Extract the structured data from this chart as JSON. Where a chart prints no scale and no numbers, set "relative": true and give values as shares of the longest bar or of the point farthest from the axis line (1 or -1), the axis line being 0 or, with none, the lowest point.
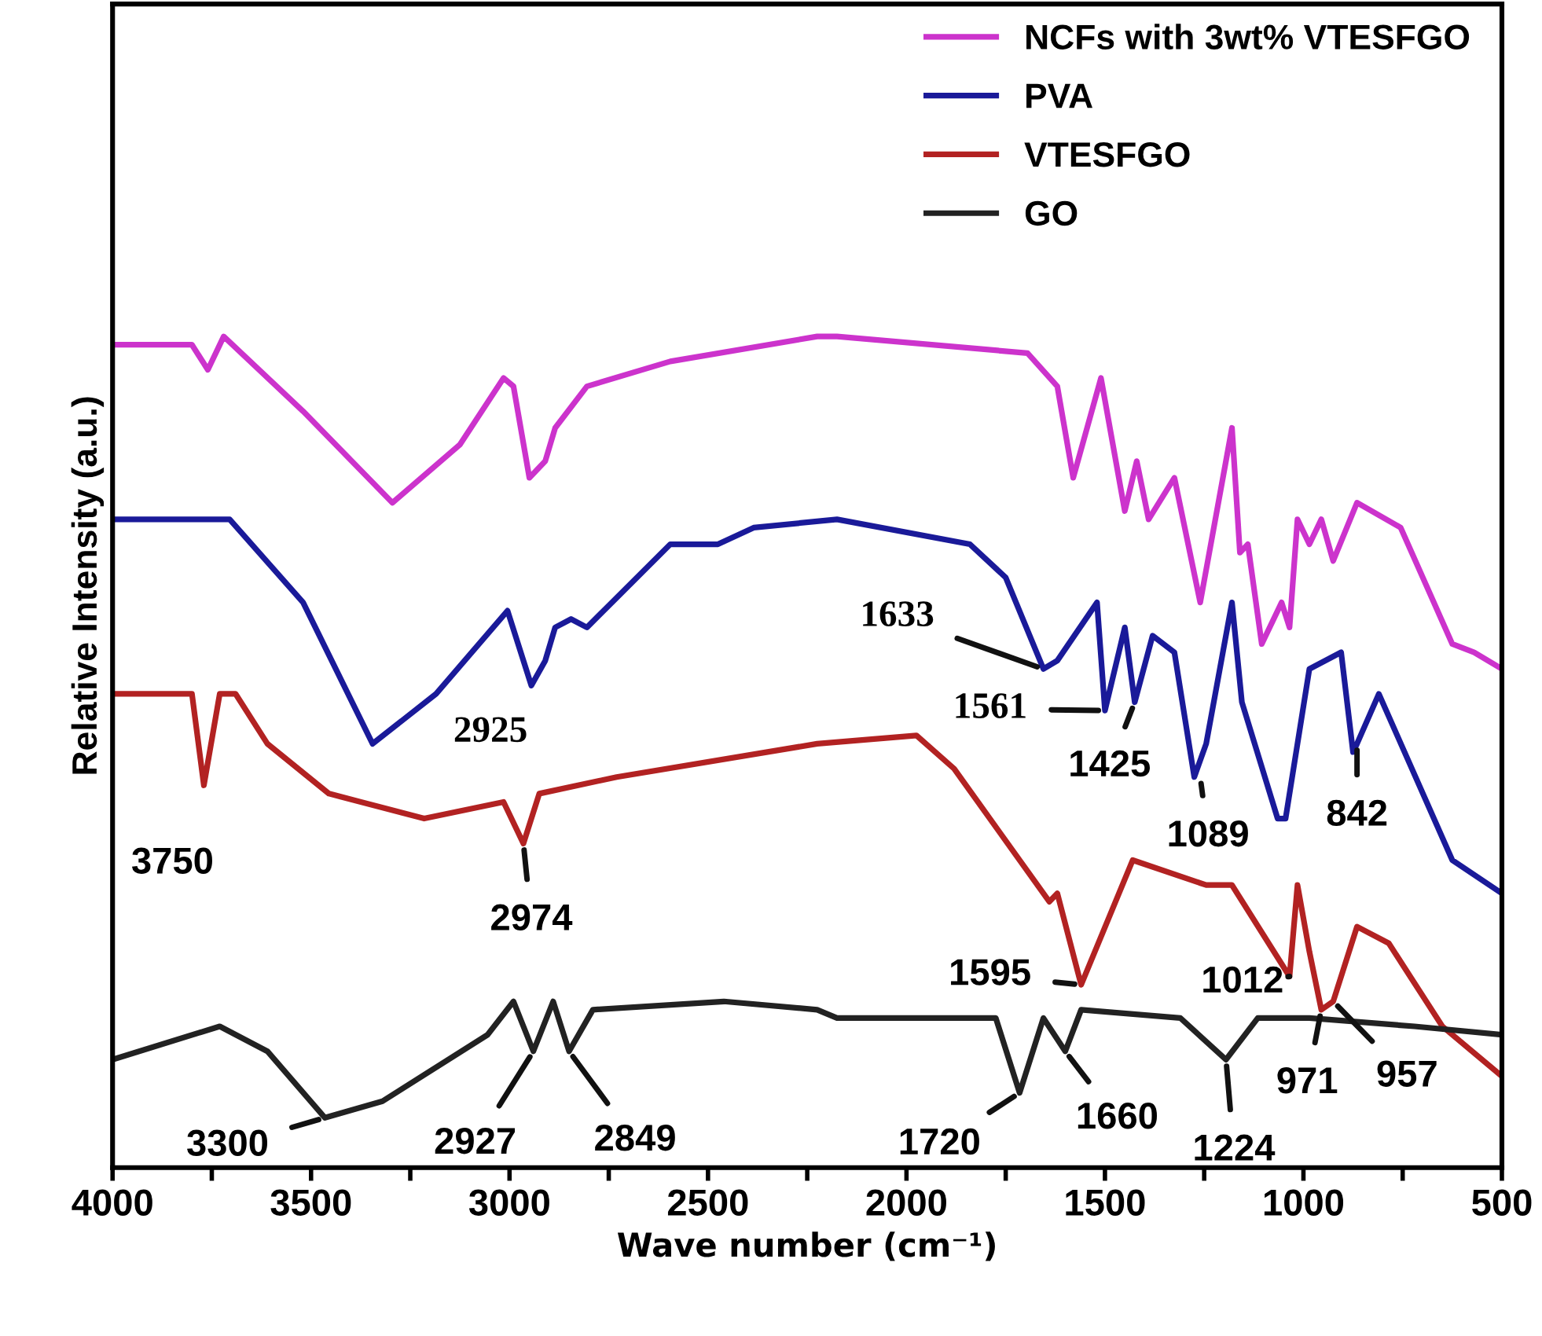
{
  "chart_data": {
    "type": "line",
    "relative": true,
    "xlabel": "Wave number (cm⁻¹)",
    "ylabel": "Relative Intensity (a.u.)",
    "xlim": [
      4000,
      500
    ],
    "xticks": [
      4000,
      {
        "value": 3750,
        "label": null
      },
      3500,
      {
        "value": 3250,
        "label": null
      },
      3000,
      {
        "value": 2750,
        "label": null
      },
      2500,
      {
        "value": 2250,
        "label": null
      },
      2000,
      {
        "value": 1750,
        "label": null
      },
      1500,
      {
        "value": 1250,
        "label": null
      },
      1000,
      {
        "value": 750,
        "label": null
      },
      500
    ],
    "grid": false,
    "legend": "top right",
    "marker": "none",
    "line_style": "solid",
    "series": [
      {
        "name": "NCFs with 3wt% VTESFGO",
        "color": "#cc33cc",
        "x": [
          4000,
          3800,
          3760,
          3720,
          3520,
          3295,
          3125,
          3015,
          2990,
          2950,
          2910,
          2885,
          2805,
          2595,
          2225,
          2175,
          1695,
          1620,
          1580,
          1510,
          1450,
          1420,
          1390,
          1325,
          1260,
          1180,
          1160,
          1140,
          1105,
          1055,
          1035,
          1015,
          985,
          955,
          925,
          865,
          755,
          625,
          570,
          500
        ],
        "values": [
          0.99,
          0.99,
          0.96,
          1.0,
          0.91,
          0.8,
          0.87,
          0.95,
          0.94,
          0.83,
          0.85,
          0.89,
          0.94,
          0.97,
          1.0,
          1.0,
          0.98,
          0.94,
          0.83,
          0.95,
          0.79,
          0.85,
          0.78,
          0.83,
          0.68,
          0.89,
          0.74,
          0.75,
          0.63,
          0.68,
          0.65,
          0.78,
          0.75,
          0.78,
          0.73,
          0.8,
          0.77,
          0.63,
          0.62,
          0.6
        ]
      },
      {
        "name": "PVA",
        "color": "#1a1a99",
        "x": [
          4000,
          3705,
          3520,
          3345,
          3185,
          3005,
          2945,
          2910,
          2885,
          2845,
          2805,
          2595,
          2475,
          2385,
          2175,
          1840,
          1750,
          1655,
          1620,
          1520,
          1500,
          1450,
          1425,
          1380,
          1325,
          1275,
          1245,
          1180,
          1155,
          1065,
          1045,
          985,
          905,
          875,
          865,
          810,
          625,
          500
        ],
        "values": [
          0.78,
          0.78,
          0.68,
          0.51,
          0.57,
          0.67,
          0.58,
          0.61,
          0.65,
          0.66,
          0.65,
          0.75,
          0.75,
          0.77,
          0.78,
          0.75,
          0.71,
          0.6,
          0.61,
          0.68,
          0.55,
          0.65,
          0.56,
          0.64,
          0.62,
          0.47,
          0.51,
          0.68,
          0.56,
          0.42,
          0.42,
          0.6,
          0.62,
          0.5,
          0.51,
          0.57,
          0.37,
          0.33
        ]
      },
      {
        "name": "VTESFGO",
        "color": "#b22222",
        "x": [
          4000,
          3800,
          3770,
          3730,
          3690,
          3610,
          3455,
          3215,
          3015,
          2965,
          2925,
          2730,
          2225,
          1975,
          1880,
          1640,
          1620,
          1560,
          1430,
          1245,
          1180,
          1035,
          1015,
          985,
          955,
          925,
          865,
          785,
          650,
          500
        ],
        "values": [
          0.57,
          0.57,
          0.46,
          0.57,
          0.57,
          0.51,
          0.45,
          0.42,
          0.44,
          0.39,
          0.45,
          0.47,
          0.51,
          0.52,
          0.48,
          0.32,
          0.33,
          0.22,
          0.37,
          0.34,
          0.34,
          0.23,
          0.34,
          0.26,
          0.19,
          0.2,
          0.29,
          0.27,
          0.17,
          0.11
        ]
      },
      {
        "name": "GO",
        "color": "#222222",
        "x": [
          4000,
          3730,
          3610,
          3465,
          3320,
          3055,
          2990,
          2940,
          2890,
          2850,
          2790,
          2460,
          2225,
          2175,
          1775,
          1715,
          1655,
          1600,
          1560,
          1310,
          1195,
          1115,
          985,
          720,
          500
        ],
        "values": [
          0.13,
          0.17,
          0.14,
          0.06,
          0.08,
          0.16,
          0.2,
          0.14,
          0.2,
          0.14,
          0.19,
          0.2,
          0.19,
          0.18,
          0.18,
          0.09,
          0.18,
          0.14,
          0.19,
          0.18,
          0.13,
          0.18,
          0.18,
          0.17,
          0.16
        ]
      }
    ],
    "annotations": [
      {
        "text": "2925",
        "x": 2945,
        "y": 0.58
      },
      {
        "text": "3750",
        "x": 3770,
        "y": 0.46
      },
      {
        "text": "2974",
        "x": 2965,
        "y": 0.39
      },
      {
        "text": "3300",
        "x": 3465,
        "y": 0.06
      },
      {
        "text": "2927",
        "x": 2940,
        "y": 0.14
      },
      {
        "text": "2849",
        "x": 2850,
        "y": 0.14
      },
      {
        "text": "1633",
        "x": 1655,
        "y": 0.6
      },
      {
        "text": "1561",
        "x": 1500,
        "y": 0.55
      },
      {
        "text": "1425",
        "x": 1425,
        "y": 0.56
      },
      {
        "text": "1089",
        "x": 1260,
        "y": 0.47
      },
      {
        "text": "842",
        "x": 865,
        "y": 0.51
      },
      {
        "text": "1595",
        "x": 1560,
        "y": 0.22
      },
      {
        "text": "1012",
        "x": 1035,
        "y": 0.23
      },
      {
        "text": "1720",
        "x": 1715,
        "y": 0.09
      },
      {
        "text": "1660",
        "x": 1600,
        "y": 0.14
      },
      {
        "text": "1224",
        "x": 1195,
        "y": 0.13
      },
      {
        "text": "971",
        "x": 955,
        "y": 0.19
      },
      {
        "text": "957",
        "x": 925,
        "y": 0.2
      }
    ]
  }
}
